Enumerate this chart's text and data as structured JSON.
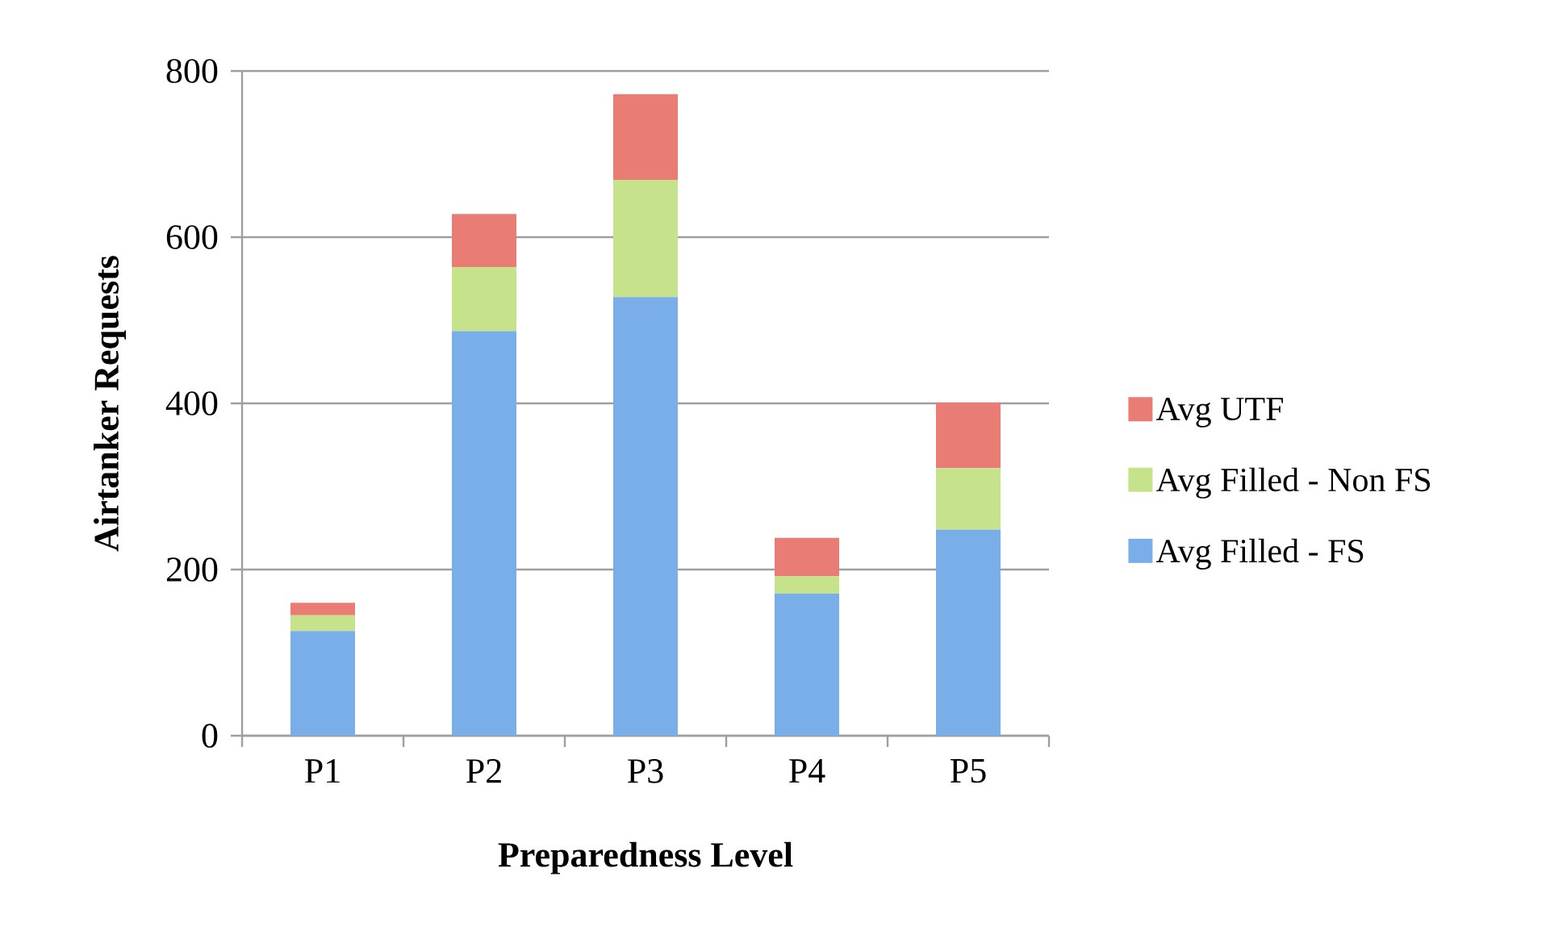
{
  "chart_data": {
    "type": "bar",
    "stacked": true,
    "xlabel": "Preparedness Level",
    "ylabel": "Airtanker Requests",
    "categories": [
      "P1",
      "P2",
      "P3",
      "P4",
      "P5"
    ],
    "series": [
      {
        "name": "Avg Filled - FS",
        "color": "#7aaee8",
        "values": [
          126,
          487,
          528,
          171,
          248
        ]
      },
      {
        "name": "Avg Filled - Non FS",
        "color": "#c6e28a",
        "values": [
          19,
          77,
          141,
          21,
          74
        ]
      },
      {
        "name": "Avg UTF",
        "color": "#e97c74",
        "values": [
          15,
          64,
          103,
          46,
          79
        ]
      }
    ],
    "ylim": [
      0,
      800
    ],
    "yticks": [
      0,
      200,
      400,
      600,
      800
    ],
    "grid": "y",
    "legend": "right"
  }
}
